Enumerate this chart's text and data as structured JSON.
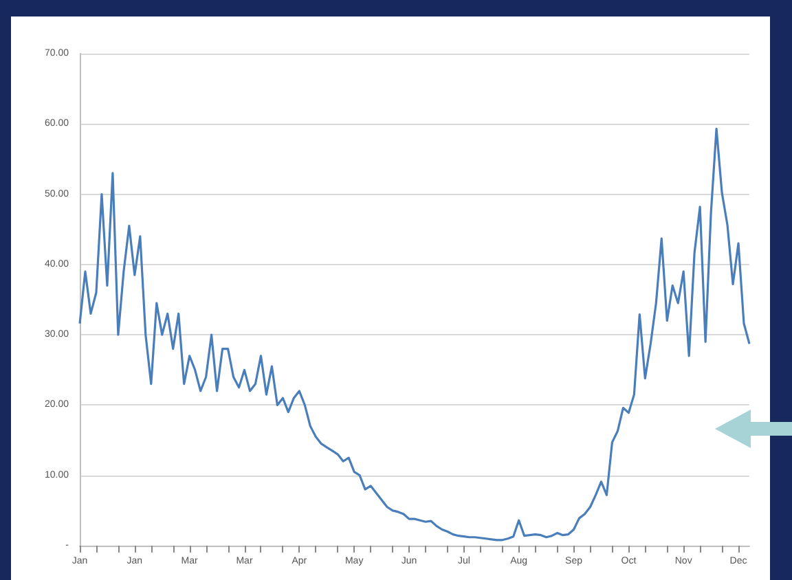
{
  "chart_data": {
    "type": "line",
    "categories": [
      "Jan",
      null,
      null,
      null,
      null,
      null,
      null,
      null,
      null,
      null,
      "Jan",
      null,
      null,
      null,
      null,
      null,
      null,
      null,
      null,
      null,
      "Mar",
      null,
      null,
      null,
      null,
      null,
      null,
      null,
      null,
      null,
      "Mar",
      null,
      null,
      null,
      null,
      null,
      null,
      null,
      null,
      null,
      "Apr",
      null,
      null,
      null,
      null,
      null,
      null,
      null,
      null,
      null,
      "May",
      null,
      null,
      null,
      null,
      null,
      null,
      null,
      null,
      null,
      "Jun",
      null,
      null,
      null,
      null,
      null,
      null,
      null,
      null,
      null,
      "Jul",
      null,
      null,
      null,
      null,
      null,
      null,
      null,
      null,
      null,
      "Aug",
      null,
      null,
      null,
      null,
      null,
      null,
      null,
      null,
      null,
      "Sep",
      null,
      null,
      null,
      null,
      null,
      null,
      null,
      null,
      null,
      "Oct",
      null,
      null,
      null,
      null,
      null,
      null,
      null,
      null,
      null,
      "Nov",
      null,
      null,
      null,
      null,
      null,
      null,
      null,
      null,
      null,
      "Dec",
      null,
      null
    ],
    "series": [
      {
        "color": "#4a7ebb",
        "values": [
          31.6,
          39,
          33,
          36,
          50,
          37,
          53,
          30,
          39,
          45.5,
          38.5,
          44,
          30,
          23,
          34.5,
          30,
          33,
          28,
          33,
          23,
          27,
          25,
          22,
          24,
          30,
          22,
          28,
          28,
          24,
          22.5,
          25,
          22,
          23,
          27,
          21.5,
          25.5,
          20,
          21,
          19,
          21,
          22,
          20,
          17,
          15.5,
          14.5,
          14,
          13.5,
          13,
          12,
          12.5,
          10.5,
          10,
          8,
          8.5,
          7.5,
          6.5,
          5.5,
          5,
          4.8,
          4.5,
          3.8,
          3.8,
          3.6,
          3.4,
          3.5,
          2.8,
          2.3,
          2.0,
          1.6,
          1.4,
          1.3,
          1.2,
          1.2,
          1.1,
          1.0,
          0.9,
          0.8,
          0.8,
          1.0,
          1.3,
          3.6,
          1.4,
          1.5,
          1.6,
          1.5,
          1.2,
          1.4,
          1.8,
          1.5,
          1.6,
          2.3,
          3.9,
          4.5,
          5.5,
          7.2,
          9.1,
          7.2,
          14.7,
          16.3,
          19.6,
          18.9,
          21.5,
          32.9,
          23.8,
          28.7,
          34.5,
          43.7,
          32,
          37,
          34.5,
          39,
          27,
          41.7,
          48.2,
          29,
          47.3,
          59.3,
          50.2,
          45.6,
          37.2,
          43,
          31.6,
          28.7
        ]
      }
    ],
    "ylim": [
      0,
      70
    ],
    "yticks": [
      {
        "value": 0,
        "label": "-"
      },
      {
        "value": 10,
        "label": "10.00"
      },
      {
        "value": 20,
        "label": "20.00"
      },
      {
        "value": 30,
        "label": "30.00"
      },
      {
        "value": 40,
        "label": "40.00"
      },
      {
        "value": 50,
        "label": "50.00"
      },
      {
        "value": 60,
        "label": "60.00"
      },
      {
        "value": 70,
        "label": "70.00"
      }
    ],
    "grid": "y",
    "marker": "none",
    "line_style": "solid"
  }
}
